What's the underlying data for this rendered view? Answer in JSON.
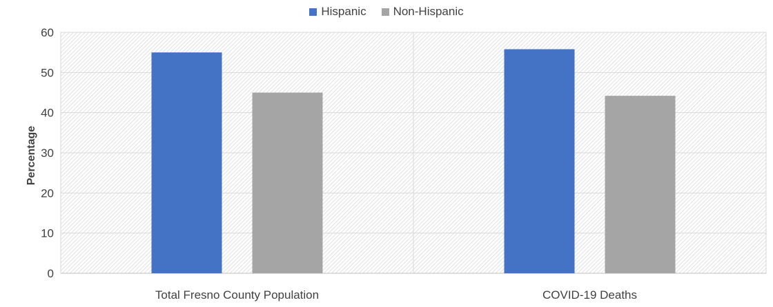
{
  "chart_data": {
    "type": "bar",
    "title": "",
    "xlabel": "",
    "ylabel": "Percentage",
    "ylim": [
      0,
      60
    ],
    "yticks": [
      0,
      10,
      20,
      30,
      40,
      50,
      60
    ],
    "categories": [
      "Total Fresno County Population",
      "COVID-19 Deaths"
    ],
    "series": [
      {
        "name": "Hispanic",
        "color": "#4472C4",
        "values": [
          55,
          55.8
        ]
      },
      {
        "name": "Non-Hispanic",
        "color": "#A5A5A5",
        "values": [
          45,
          44.2
        ]
      }
    ],
    "legend_position": "top-center",
    "grid": true
  }
}
